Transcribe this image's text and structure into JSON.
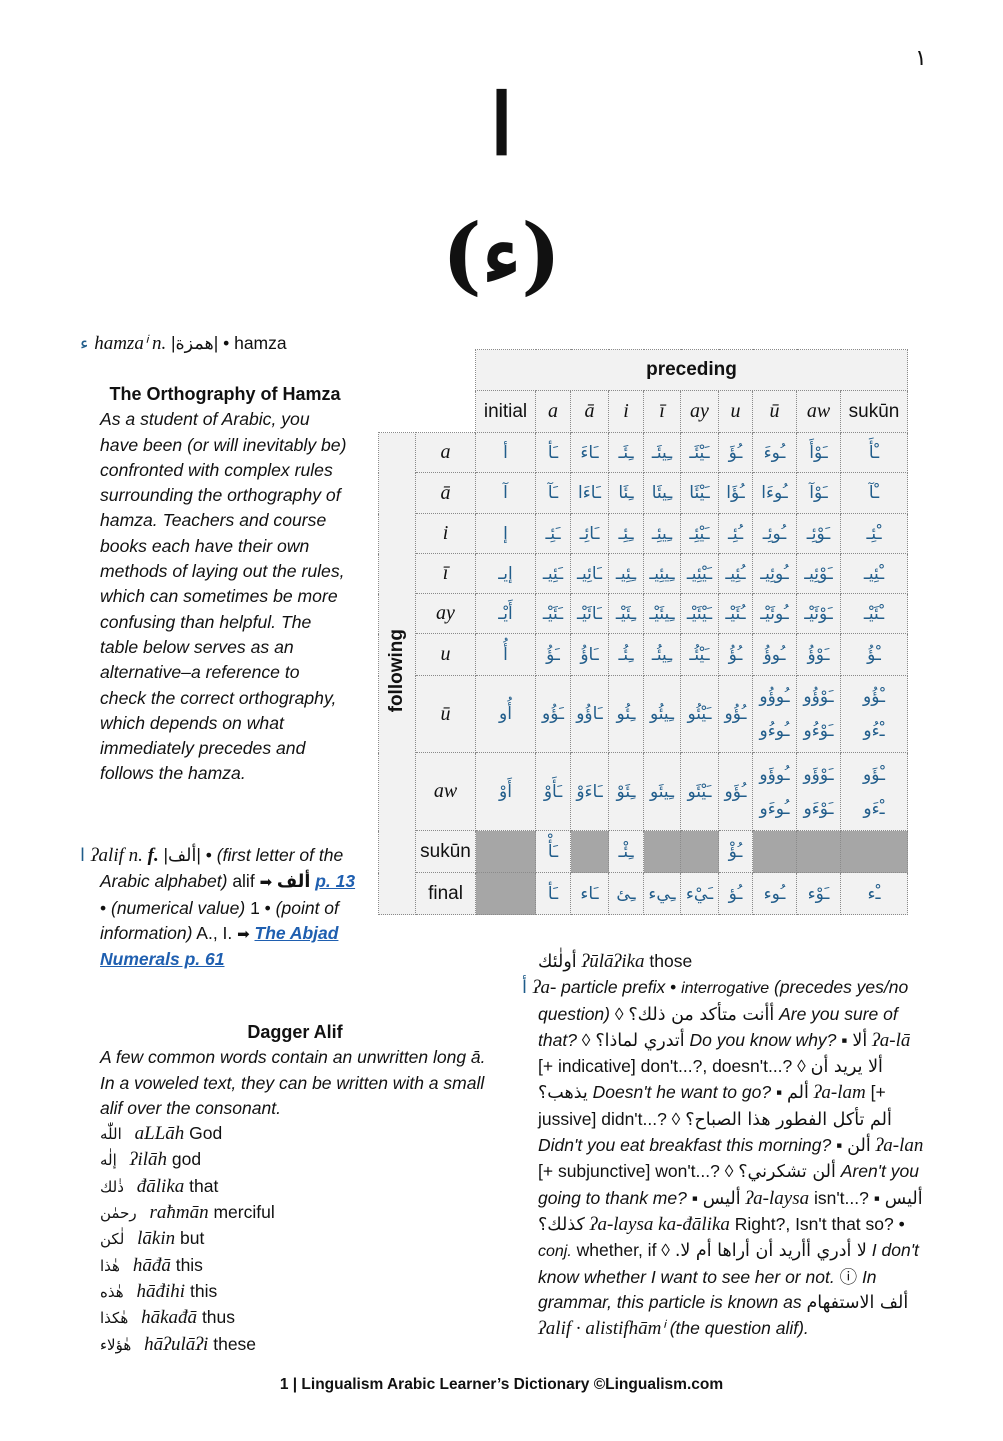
{
  "page_number_ar": "١",
  "title_letter": "ا",
  "title_letter_hamza": "(ء)",
  "hamza_entry": [
    {
      "t": "ء ",
      "c": "headword"
    },
    {
      "t": "hamzaⁱ n. ",
      "c": "tr"
    },
    {
      "t": "|",
      "c": ""
    },
    {
      "t": "همزة",
      "c": "ar"
    },
    {
      "t": "| • hamza",
      "c": ""
    }
  ],
  "orthography": {
    "heading": "The Orthography of Hamza",
    "body": "As a student of Arabic, you have been (or will inevitably be) confronted with complex rules surrounding the orthography of hamza. Teachers and course books each have their own methods of laying out the rules, which can sometimes be more confusing than helpful. The table below serves as an alternative–a reference to check the correct orthography, which depends on what immediately precedes and follows the hamza."
  },
  "alif_entry": [
    {
      "t": "ا ",
      "c": "headword"
    },
    {
      "t": "ʔalif ",
      "c": "tr"
    },
    {
      "t": "n. ",
      "c": "tr"
    },
    {
      "t": "f. ",
      "c": "trb"
    },
    {
      "t": "|",
      "c": ""
    },
    {
      "t": "ألف",
      "c": "ar"
    },
    {
      "t": "| • ",
      "c": ""
    },
    {
      "t": "(first letter of the Arabic alphabet)",
      "c": "i"
    },
    {
      "t": " alif ",
      "c": ""
    },
    {
      "t": "➡ ",
      "c": "arr"
    },
    {
      "t": "ألف",
      "c": "ar b"
    },
    {
      "t": " ",
      "c": ""
    },
    {
      "t": "p. 13",
      "c": "link"
    },
    {
      "t": " • ",
      "c": ""
    },
    {
      "t": "(numerical value)",
      "c": "i"
    },
    {
      "t": " 1 • ",
      "c": ""
    },
    {
      "t": "(point of information)",
      "c": "i"
    },
    {
      "t": " A., I. ",
      "c": ""
    },
    {
      "t": "➡ ",
      "c": "arr"
    },
    {
      "t": "The Abjad Numerals p. 61",
      "c": "link"
    }
  ],
  "dagger_alif": {
    "heading": "Dagger Alif",
    "body": "A few common words contain an unwritten long ā. In a voweled text, they can be written with a small alif over the consonant.",
    "words": [
      {
        "ar": "اللّٰه",
        "tr": "aLLāh",
        "en": "God"
      },
      {
        "ar": "إلٰه",
        "tr": "ʔilāh",
        "en": "god"
      },
      {
        "ar": "ذٰلك",
        "tr": "đālika",
        "en": "that"
      },
      {
        "ar": "رحمٰن",
        "tr": "raћmān",
        "en": "merciful"
      },
      {
        "ar": "لٰكن",
        "tr": "lākin",
        "en": "but"
      },
      {
        "ar": "هٰذا",
        "tr": "hāđā",
        "en": "this"
      },
      {
        "ar": "هٰذه",
        "tr": "hāđihi",
        "en": "this"
      },
      {
        "ar": "هٰكذا",
        "tr": "hākađā",
        "en": "thus"
      },
      {
        "ar": "هٰؤلاء",
        "tr": "hāʔulāʔi",
        "en": "these"
      }
    ]
  },
  "table": {
    "preceding_label": "preceding",
    "following_label": "following",
    "columns": [
      "initial",
      "a",
      "ā",
      "i",
      "ī",
      "ay",
      "u",
      "ū",
      "aw",
      "sukūn"
    ],
    "rows": [
      {
        "label": "a",
        "cells": [
          "أ",
          "ـَأ",
          "ـَاءَ",
          "ـِئَـ",
          "ـِيئَـ",
          "ـَيْئَـ",
          "ـُؤَ",
          "ـُوءَ",
          "ـَوْأَ",
          "ـْأَ"
        ]
      },
      {
        "label": "ā",
        "cells": [
          "آ",
          "ـَآ",
          "ـَاءَا",
          "ـِئَا",
          "ـِيئَا",
          "ـَيْئَا",
          "ـُؤَا",
          "ـُوءَا",
          "ـَوْآ",
          "ـْآ"
        ]
      },
      {
        "label": "i",
        "cells": [
          "إ",
          "ـَئِـ",
          "ـَائِـ",
          "ـِئِـ",
          "ـِيئِـ",
          "ـَيْئِـ",
          "ـُئِـ",
          "ـُوئِـ",
          "ـَوْئِـ",
          "ـْئِـ"
        ]
      },
      {
        "label": "ī",
        "cells": [
          "إيـ",
          "ـَئِيـ",
          "ـَائِيـ",
          "ـِئِيـ",
          "ـِيئِيـ",
          "ـَيْئِيـ",
          "ـُئِيـ",
          "ـُوئِيـ",
          "ـَوْئِيـ",
          "ـْئِيـ"
        ]
      },
      {
        "label": "ay",
        "cells": [
          "أَيْـ",
          "ـَئَيْـ",
          "ـَائَيْـ",
          "ـِئَيْـ",
          "ـِيئَيْـ",
          "ـَيْئَيْـ",
          "ـُئَيْـ",
          "ـُوئَيْـ",
          "ـَوْئَيْـ",
          "ـْئَيْـ"
        ]
      },
      {
        "label": "u",
        "cells": [
          "أُ",
          "ـَؤُ",
          "ـَاؤُ",
          "ـِئُـ",
          "ـِيئُـ",
          "ـَيْئُـ",
          "ـُؤُ",
          "ـُوؤُ",
          "ـَوْؤُ",
          "ـْؤُ"
        ]
      },
      {
        "label": "ū",
        "cells": [
          "أُو",
          "ـَؤُو",
          "ـَاؤُو",
          "ـِئُو",
          "ـِيئُو",
          "ـَيْئُو",
          "ـُؤُو",
          [
            "ـُوؤُو",
            "ـُوءُو"
          ],
          [
            "ـَوْؤُو",
            "ـَوْءُو"
          ],
          [
            "ـْؤُو",
            "ـْءُو"
          ]
        ]
      },
      {
        "label": "aw",
        "cells": [
          "أَوْ",
          "ـَأَوْ",
          "ـَاءَوْ",
          "ـِئَوْ",
          "ـِيئَو",
          "ـَيْئَو",
          "ـُؤَو",
          [
            "ـُوؤَو",
            "ـُوءَو"
          ],
          [
            "ـَوْؤَو",
            "ـَوْءَو"
          ],
          [
            "ـْؤَو",
            "ـْءَو"
          ]
        ]
      },
      {
        "label": "sukūn",
        "cells": [
          null,
          "ـَأْ",
          null,
          "ـِئْـ",
          null,
          null,
          "ـُؤْ",
          null,
          null,
          null
        ]
      },
      {
        "label": "final",
        "cells": [
          null,
          "ـَأ",
          "ـَاء",
          "ـِئ",
          "ـِيء",
          "ـَيْء",
          "ـُؤ",
          "ـُوء",
          "ـَوْء",
          "ـْء"
        ]
      }
    ]
  },
  "right_column": [
    {
      "t": "أولٰئك",
      "c": "ar"
    },
    {
      "t": "  ʔūlāʔika",
      "c": "tr"
    },
    {
      "t": " those",
      "c": ""
    },
    {
      "t": "\n",
      "c": "br"
    },
    {
      "t": "أ ",
      "c": "headword hang"
    },
    {
      "t": "ʔa- ",
      "c": "tr"
    },
    {
      "t": "particle prefix",
      "c": "i"
    },
    {
      "t": " • ",
      "c": ""
    },
    {
      "t": "interrogative",
      "c": "i sm"
    },
    {
      "t": " ",
      "c": ""
    },
    {
      "t": "(precedes yes/no question)",
      "c": "i"
    },
    {
      "t": " ◊ ",
      "c": ""
    },
    {
      "t": "أأنت متأكد من ذلك؟",
      "c": "ar"
    },
    {
      "t": " Are you sure of that?",
      "c": "i"
    },
    {
      "t": " ◊ ",
      "c": ""
    },
    {
      "t": "أتدري لماذا؟",
      "c": "ar"
    },
    {
      "t": " Do you know why?",
      "c": "i"
    },
    {
      "t": " ▪ ",
      "c": ""
    },
    {
      "t": "ألا",
      "c": "ar"
    },
    {
      "t": " ʔa-lā",
      "c": "tr"
    },
    {
      "t": " [+ indicative] don't...?, doesn't...? ◊ ",
      "c": ""
    },
    {
      "t": "ألا يريد أن يذهب؟",
      "c": "ar"
    },
    {
      "t": " Doesn't he want to go?",
      "c": "i"
    },
    {
      "t": " ▪ ",
      "c": ""
    },
    {
      "t": "ألم",
      "c": "ar"
    },
    {
      "t": " ʔa-lam",
      "c": "tr"
    },
    {
      "t": " [+ jussive] didn't...? ◊ ",
      "c": ""
    },
    {
      "t": "ألم تأكل الفطور هذا الصباح؟",
      "c": "ar"
    },
    {
      "t": " Didn't you eat breakfast this morning?",
      "c": "i"
    },
    {
      "t": " ▪ ",
      "c": ""
    },
    {
      "t": "ألن",
      "c": "ar"
    },
    {
      "t": " ʔa-lan",
      "c": "tr"
    },
    {
      "t": " [+ subjunctive] won't...? ◊ ",
      "c": ""
    },
    {
      "t": "ألن تشكرني؟",
      "c": "ar"
    },
    {
      "t": " Aren't you going to thank me?",
      "c": "i"
    },
    {
      "t": " ▪ ",
      "c": ""
    },
    {
      "t": "أليس",
      "c": "ar"
    },
    {
      "t": " ʔa-laysa",
      "c": "tr"
    },
    {
      "t": " isn't...? ▪ ",
      "c": ""
    },
    {
      "t": "أليس كذلك؟",
      "c": "ar"
    },
    {
      "t": " ʔa-laysa ka-đālika",
      "c": "tr"
    },
    {
      "t": " Right?, Isn't that so? • ",
      "c": ""
    },
    {
      "t": "conj.",
      "c": "i sm"
    },
    {
      "t": " whether, if ◊ ",
      "c": ""
    },
    {
      "t": "لا أدري أأريد أن أراها أم لا.",
      "c": "ar"
    },
    {
      "t": " I don't know whether I want to see her or not.",
      "c": "i"
    },
    {
      "t": " ⓘ ",
      "c": ""
    },
    {
      "t": "In grammar, this particle is known as",
      "c": "i"
    },
    {
      "t": " ",
      "c": ""
    },
    {
      "t": "ألف الاستفهام",
      "c": "ar"
    },
    {
      "t": " ʔalif · alistifhāmⁱ",
      "c": "tr"
    },
    {
      "t": " ",
      "c": ""
    },
    {
      "t": "(the question alif).",
      "c": "i"
    }
  ],
  "footer": "1 | Lingualism Arabic Learner’s Dictionary ©Lingualism.com",
  "colors": {
    "arabic_blue": "#215d8b",
    "table_bg": "#f2f2f2",
    "table_gray": "#a6a6a6",
    "link": "#1f5fb0"
  }
}
